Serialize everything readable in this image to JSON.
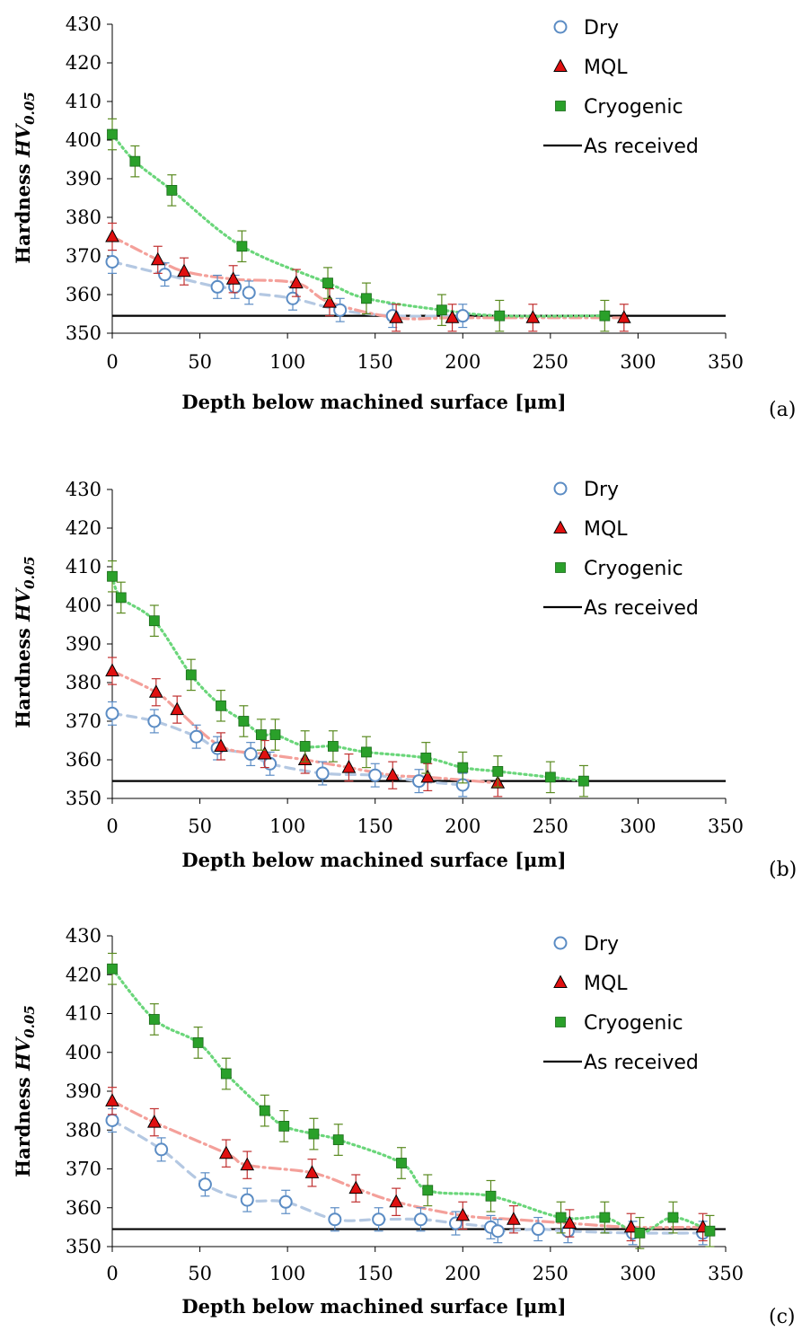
{
  "colors": {
    "dry_marker": "#5b8cc4",
    "dry_line": "#b4c8e2",
    "mql_marker": "#e01010",
    "mql_line": "#f4a09a",
    "cryo_marker": "#2aa02a",
    "cryo_line": "#6ad67a",
    "errbar_dry": "#5b8cc4",
    "errbar_mql": "#c03030",
    "errbar_cryo": "#5a8a20",
    "as_received": "#000000"
  },
  "chart_data": [
    {
      "panel_label": "(a)",
      "type": "scatter",
      "xlabel": "Depth below machined surface [μm]",
      "ylabel_main": "Hardness ",
      "ylabel_var": "HV",
      "ylabel_sub": "0.05",
      "xlim": [
        0,
        350
      ],
      "ylim": [
        350,
        430
      ],
      "xticks": [
        "0",
        "50",
        "100",
        "150",
        "200",
        "250",
        "300",
        "350"
      ],
      "yticks": [
        "350",
        "360",
        "370",
        "380",
        "390",
        "400",
        "410",
        "420",
        "430"
      ],
      "legend": [
        "Dry",
        "MQL",
        "Cryogenic",
        "As received"
      ],
      "legend_position": "top-right",
      "as_received": 354.5,
      "series": [
        {
          "name": "Dry",
          "marker": "circle",
          "err": 3,
          "x": [
            0,
            30,
            60,
            70,
            78,
            103,
            130,
            160,
            200
          ],
          "y": [
            368.5,
            365.2,
            362,
            362,
            360.5,
            359,
            356,
            354.5,
            354.5
          ]
        },
        {
          "name": "MQL",
          "marker": "triangle",
          "err": 3.5,
          "x": [
            0,
            26,
            41,
            69,
            105,
            124,
            162,
            194,
            240,
            292
          ],
          "y": [
            375,
            369,
            366,
            364,
            363,
            358,
            354,
            354,
            354,
            354
          ]
        },
        {
          "name": "Cryogenic",
          "marker": "square",
          "err": 4,
          "x": [
            0,
            13,
            34,
            74,
            123,
            145,
            188,
            221,
            281
          ],
          "y": [
            401.5,
            394.5,
            387,
            372.5,
            363,
            359,
            356,
            354.5,
            354.5
          ]
        }
      ]
    },
    {
      "panel_label": "(b)",
      "type": "scatter",
      "xlabel": "Depth below machined surface [μm]",
      "ylabel_main": "Hardness ",
      "ylabel_var": "HV",
      "ylabel_sub": "0.05",
      "xlim": [
        0,
        350
      ],
      "ylim": [
        350,
        430
      ],
      "xticks": [
        "0",
        "50",
        "100",
        "150",
        "200",
        "250",
        "300",
        "350"
      ],
      "yticks": [
        "350",
        "360",
        "370",
        "380",
        "390",
        "400",
        "410",
        "420",
        "430"
      ],
      "legend": [
        "Dry",
        "MQL",
        "Cryogenic",
        "As received"
      ],
      "legend_position": "top-right",
      "as_received": 354.5,
      "series": [
        {
          "name": "Dry",
          "marker": "circle",
          "err": 3,
          "x": [
            0,
            24,
            48,
            60,
            79,
            90,
            120,
            150,
            175,
            200
          ],
          "y": [
            372,
            370,
            366,
            363,
            361.5,
            359,
            356.5,
            356,
            354.5,
            353.5
          ]
        },
        {
          "name": "MQL",
          "marker": "triangle",
          "err": 3.5,
          "x": [
            0,
            25,
            37,
            62,
            87,
            110,
            135,
            160,
            180,
            220
          ],
          "y": [
            383,
            377.5,
            373,
            363.5,
            361.5,
            360,
            358,
            356,
            355.5,
            354
          ]
        },
        {
          "name": "Cryogenic",
          "marker": "square",
          "err": 4,
          "x": [
            0,
            5,
            24,
            45,
            62,
            75,
            85,
            93,
            110,
            126,
            145,
            179,
            200,
            220,
            250,
            269
          ],
          "y": [
            407.5,
            402,
            396,
            382,
            374,
            370,
            366.5,
            366.5,
            363.5,
            363.5,
            362,
            360.5,
            358,
            357,
            355.5,
            354.5
          ]
        }
      ]
    },
    {
      "panel_label": "(c)",
      "type": "scatter",
      "xlabel": "Depth below machined surface [μm]",
      "ylabel_main": "Hardness ",
      "ylabel_var": "HV",
      "ylabel_sub": "0.05",
      "xlim": [
        0,
        350
      ],
      "ylim": [
        350,
        430
      ],
      "xticks": [
        "0",
        "50",
        "100",
        "150",
        "200",
        "250",
        "300",
        "350"
      ],
      "yticks": [
        "350",
        "360",
        "370",
        "380",
        "390",
        "400",
        "410",
        "420",
        "430"
      ],
      "legend": [
        "Dry",
        "MQL",
        "Cryogenic",
        "As received"
      ],
      "legend_position": "top-right",
      "as_received": 354.5,
      "series": [
        {
          "name": "Dry",
          "marker": "circle",
          "err": 3,
          "x": [
            0,
            28,
            53,
            77,
            99,
            127,
            152,
            176,
            196,
            216,
            220,
            243,
            260,
            297,
            337
          ],
          "y": [
            382.5,
            375,
            366,
            362,
            361.5,
            357,
            357,
            357,
            356,
            355,
            354,
            354.5,
            354,
            353.5,
            353.5
          ]
        },
        {
          "name": "MQL",
          "marker": "triangle",
          "err": 3.5,
          "x": [
            0,
            24,
            65,
            77,
            114,
            139,
            162,
            200,
            229,
            261,
            296,
            337
          ],
          "y": [
            387.5,
            382,
            374,
            371,
            369,
            365,
            361.5,
            358,
            357,
            356,
            355,
            355
          ]
        },
        {
          "name": "Cryogenic",
          "marker": "square",
          "err": 4,
          "x": [
            0,
            24,
            49,
            65,
            87,
            98,
            115,
            129,
            165,
            180,
            216,
            256,
            281,
            301,
            320,
            341
          ],
          "y": [
            421.5,
            408.5,
            402.5,
            394.5,
            385,
            381,
            379,
            377.5,
            371.5,
            364.5,
            363,
            357.5,
            357.5,
            353.5,
            357.5,
            354
          ]
        }
      ]
    }
  ]
}
